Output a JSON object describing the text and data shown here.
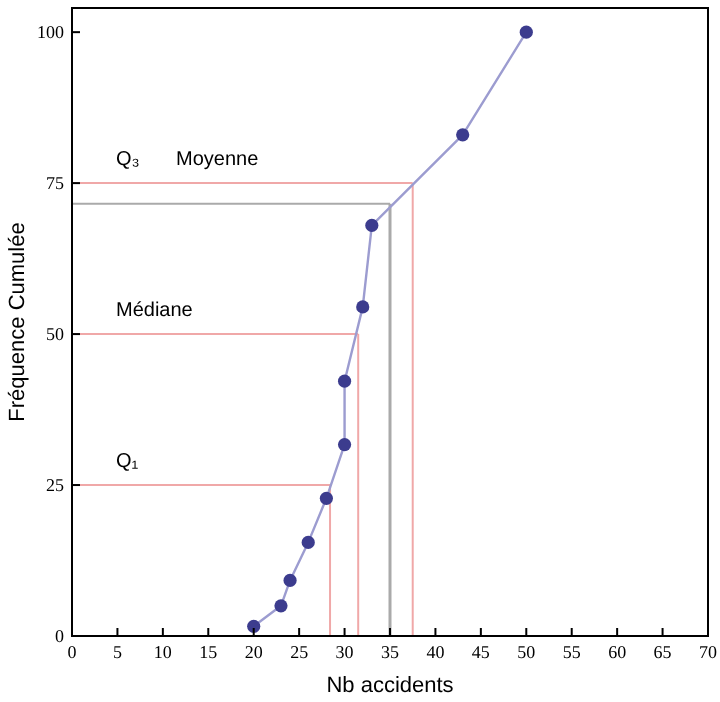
{
  "chart_data": {
    "type": "line",
    "xlabel": "Nb accidents",
    "ylabel": "Fréquence Cumulée",
    "x": [
      20,
      23,
      24,
      26,
      28,
      30,
      30,
      32,
      33,
      43,
      50
    ],
    "series": [
      {
        "color": "#3c3c8e",
        "values": [
          1.6,
          5,
          9.2,
          15.5,
          22.8,
          31.7,
          42.2,
          54.5,
          68,
          83,
          100
        ]
      }
    ],
    "marker": "circle",
    "xlim": [
      0,
      70
    ],
    "ylim": [
      0,
      104
    ],
    "xticks": [
      0,
      5,
      10,
      15,
      20,
      25,
      30,
      35,
      40,
      45,
      50,
      55,
      60,
      65,
      70
    ],
    "yticks": [
      0,
      25,
      50,
      75,
      100
    ],
    "grid": false,
    "ref_lines": [
      {
        "axis": "y",
        "value": 25,
        "color": "#f0a8a8",
        "label": "Q₁"
      },
      {
        "axis": "x",
        "value": 28.4,
        "color": "#f0a8a8"
      },
      {
        "axis": "y",
        "value": 50,
        "color": "#f0a8a8",
        "label": "Médiane"
      },
      {
        "axis": "x",
        "value": 31.5,
        "color": "#f0a8a8"
      },
      {
        "axis": "y",
        "value": 71.6,
        "color": "#aaaaaa",
        "label": "Moyenne"
      },
      {
        "axis": "x",
        "value": 35,
        "color": "#aaaaaa"
      },
      {
        "axis": "y",
        "value": 75,
        "color": "#f0a8a8",
        "label": "Q₃"
      },
      {
        "axis": "x",
        "value": 37.5,
        "color": "#f0a8a8"
      }
    ]
  }
}
